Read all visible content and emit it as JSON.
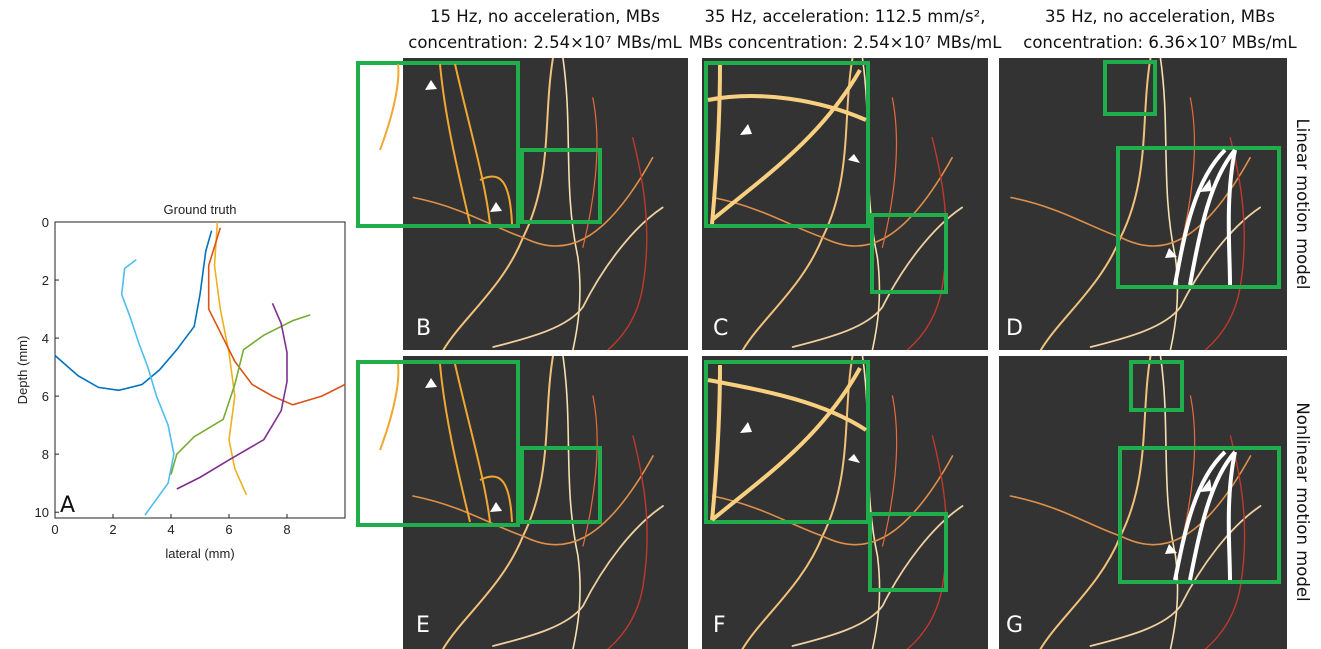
{
  "chart_data": {
    "type": "line",
    "title": "Ground truth",
    "xlabel": "lateral (mm)",
    "ylabel": "Depth (mm)",
    "panel_label": "A",
    "xlim": [
      0,
      10
    ],
    "ylim": [
      0,
      10.2
    ],
    "y_reversed": true,
    "xticks": [
      0,
      2,
      4,
      6,
      8
    ],
    "yticks": [
      0,
      2,
      4,
      6,
      8,
      10
    ],
    "series": [
      {
        "color": "#0072bd",
        "x": [
          0,
          0.8,
          1.5,
          2.2,
          3.0,
          3.6,
          4.2,
          4.8,
          5.0,
          5.2,
          5.4
        ],
        "values": [
          4.6,
          5.3,
          5.7,
          5.8,
          5.6,
          5.1,
          4.4,
          3.6,
          2.5,
          1.0,
          0.3
        ]
      },
      {
        "color": "#4dbeee",
        "x": [
          2.8,
          2.4,
          2.3,
          2.6,
          2.9,
          3.2,
          3.5,
          3.9,
          4.1,
          3.9,
          3.1
        ],
        "values": [
          1.3,
          1.6,
          2.5,
          3.3,
          4.2,
          5.0,
          6.0,
          7.0,
          8.0,
          9.0,
          10.1
        ]
      },
      {
        "color": "#edb120",
        "x": [
          5.6,
          5.5,
          5.7,
          6.0,
          6.2,
          6.0,
          6.2,
          6.6
        ],
        "values": [
          0,
          1.5,
          3.0,
          4.5,
          6.0,
          7.5,
          8.5,
          9.4
        ]
      },
      {
        "color": "#d95319",
        "x": [
          5.7,
          5.3,
          5.3,
          5.8,
          6.2,
          6.8,
          7.5,
          8.2,
          9.2,
          10
        ],
        "values": [
          0.2,
          1.5,
          3.0,
          4.0,
          4.8,
          5.6,
          6.0,
          6.3,
          6.0,
          5.6
        ]
      },
      {
        "color": "#77ac30",
        "x": [
          8.8,
          8.2,
          7.2,
          6.5,
          6.2,
          5.8,
          4.8,
          4.2,
          4.0
        ],
        "values": [
          3.2,
          3.4,
          3.9,
          4.4,
          5.6,
          6.8,
          7.4,
          8.0,
          8.7
        ]
      },
      {
        "color": "#7e2f8e",
        "x": [
          7.5,
          7.8,
          8.0,
          8.0,
          7.8,
          7.2,
          6.0,
          5.0,
          4.2
        ],
        "values": [
          2.8,
          3.5,
          4.5,
          5.5,
          6.5,
          7.5,
          8.2,
          8.8,
          9.2
        ]
      }
    ]
  },
  "columns": [
    {
      "lines": [
        "15 Hz, no acceleration, MBs",
        "concentration: 2.54×10⁷ MBs/mL"
      ]
    },
    {
      "lines": [
        "35 Hz, acceleration: 112.5 mm/s²,",
        "MBs concentration: 2.54×10⁷ MBs/mL"
      ]
    },
    {
      "lines": [
        "35 Hz, no acceleration, MBs",
        "concentration: 6.36×10⁷ MBs/mL"
      ]
    }
  ],
  "rows": [
    "Linear motion model",
    "Nonlinear motion model"
  ],
  "panels": [
    "B",
    "C",
    "D",
    "E",
    "F",
    "G"
  ]
}
